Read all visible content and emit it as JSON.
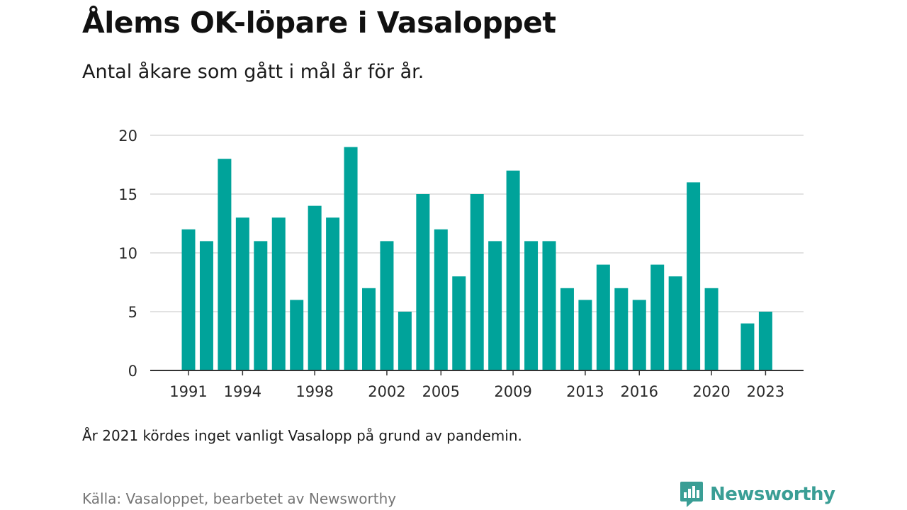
{
  "header": {
    "title": "Ålems OK-löpare i Vasaloppet",
    "subtitle": "Antal åkare som gått i mål år för år."
  },
  "footer": {
    "note": "År 2021 kördes inget vanligt Vasalopp på grund av pandemin.",
    "source": "Källa: Vasaloppet, bearbetet av Newsworthy",
    "brand": "Newsworthy"
  },
  "colors": {
    "bar": "#00a39a",
    "grid": "#d9d9d9",
    "axis": "#333333",
    "brand": "#3a9e95"
  },
  "chart_data": {
    "type": "bar",
    "title": "Ålems OK-löpare i Vasaloppet",
    "subtitle": "Antal åkare som gått i mål år för år.",
    "xlabel": "",
    "ylabel": "",
    "ylim": [
      0,
      20
    ],
    "yticks": [
      "0",
      "5",
      "10",
      "15",
      "20"
    ],
    "xticks": [
      "1991",
      "1994",
      "1998",
      "2002",
      "2005",
      "2009",
      "2013",
      "2016",
      "2020",
      "2023"
    ],
    "grid": true,
    "categories": [
      1991,
      1992,
      1993,
      1994,
      1995,
      1996,
      1997,
      1998,
      1999,
      2000,
      2001,
      2002,
      2003,
      2004,
      2005,
      2006,
      2007,
      2008,
      2009,
      2010,
      2011,
      2012,
      2013,
      2014,
      2015,
      2016,
      2017,
      2018,
      2019,
      2020,
      2021,
      2022,
      2023
    ],
    "values": [
      12,
      11,
      18,
      13,
      11,
      13,
      6,
      14,
      13,
      19,
      7,
      11,
      5,
      15,
      12,
      8,
      15,
      11,
      17,
      11,
      11,
      7,
      6,
      9,
      7,
      6,
      9,
      8,
      16,
      7,
      null,
      4,
      5
    ]
  }
}
